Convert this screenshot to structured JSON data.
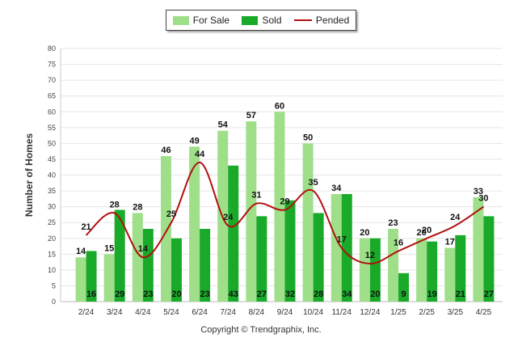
{
  "chart_data": {
    "type": "bar",
    "categories": [
      "2/24",
      "3/24",
      "4/24",
      "5/24",
      "6/24",
      "7/24",
      "8/24",
      "9/24",
      "10/24",
      "11/24",
      "12/24",
      "1/25",
      "2/25",
      "3/25",
      "4/25"
    ],
    "series": [
      {
        "name": "For Sale",
        "type": "bar",
        "color": "#9fdf8a",
        "values": [
          14,
          15,
          28,
          46,
          49,
          54,
          57,
          60,
          50,
          34,
          20,
          23,
          20,
          17,
          33
        ]
      },
      {
        "name": "Sold",
        "type": "bar",
        "color": "#1aaa2a",
        "values": [
          16,
          29,
          23,
          20,
          23,
          43,
          27,
          32,
          28,
          34,
          20,
          9,
          19,
          21,
          27
        ]
      },
      {
        "name": "Pended",
        "type": "line",
        "color": "#b01010",
        "values": [
          21,
          28,
          14,
          25,
          44,
          24,
          31,
          29,
          35,
          17,
          12,
          16,
          20,
          24,
          30
        ]
      }
    ],
    "ylabel": "Number of Homes",
    "xlabel": "",
    "ylim": [
      0,
      80
    ],
    "yticks": [
      0,
      5,
      10,
      15,
      20,
      25,
      30,
      35,
      40,
      45,
      50,
      55,
      60,
      65,
      70,
      75,
      80
    ],
    "grid": true,
    "legend_position": "top-center"
  },
  "legend": {
    "for_sale": "For Sale",
    "sold": "Sold",
    "pended": "Pended"
  },
  "footer": {
    "credit": "Copyright © Trendgraphix, Inc."
  }
}
